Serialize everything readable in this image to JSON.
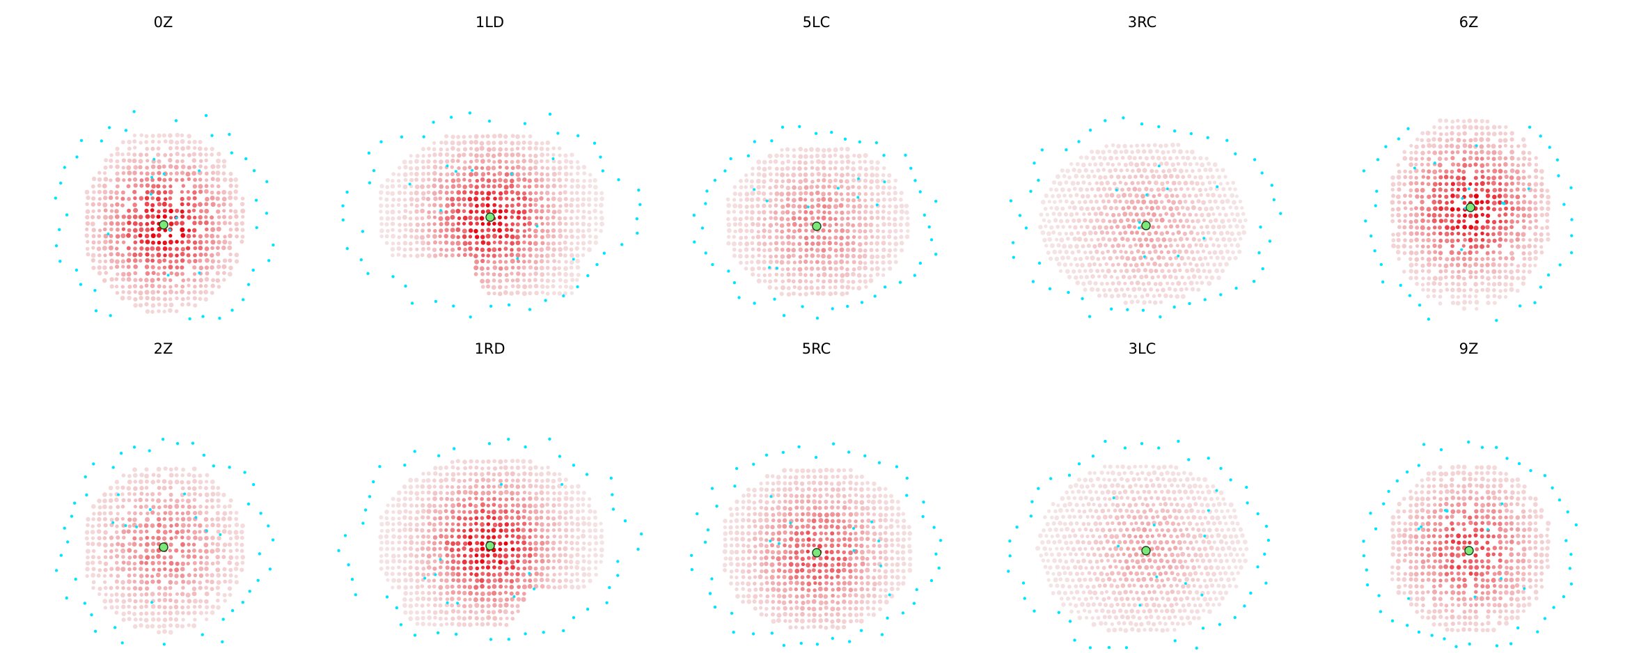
{
  "figure": {
    "colors": {
      "voxel_low": "#ece6e6",
      "voxel_high": "#e8000c",
      "sensor": "#00e5ff",
      "target_fill": "#7de87a",
      "target_stroke": "#1b3b1b"
    },
    "panels": [
      {
        "title": "0Z",
        "view": "front"
      },
      {
        "title": "1LD",
        "view": "side-left-tilted"
      },
      {
        "title": "5LC",
        "view": "side-left"
      },
      {
        "title": "3RC",
        "view": "side-right"
      },
      {
        "title": "6Z",
        "view": "front"
      },
      {
        "title": "2Z",
        "view": "front"
      },
      {
        "title": "1RD",
        "view": "side-right-tilted"
      },
      {
        "title": "5RC",
        "view": "side-right"
      },
      {
        "title": "3LC",
        "view": "side-left"
      },
      {
        "title": "9Z",
        "view": "front"
      }
    ]
  }
}
